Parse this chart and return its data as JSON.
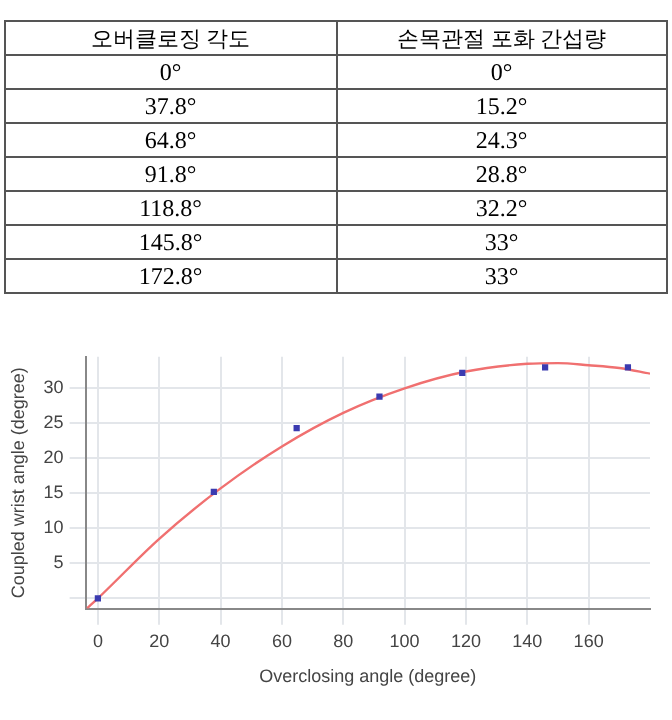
{
  "chart_data": [
    {
      "type": "other",
      "annotations": [
        "오버클로징 각도",
        "손목관절 포화 간섭량",
        "0°",
        "0°",
        "37.8°",
        "15.2°",
        "64.8°",
        "24.3°",
        "91.8°",
        "28.8°",
        "118.8°",
        "32.2°",
        "145.8°",
        "33°",
        "172.8°",
        "33°"
      ]
    },
    {
      "type": "scatter",
      "xlabel": "Overclosing angle (degree)",
      "ylabel": "Coupled wrist angle (degree)",
      "xlim": [
        -4,
        180
      ],
      "ylim": [
        -1.5,
        34.5
      ],
      "xticks": [
        0,
        20,
        40,
        60,
        80,
        100,
        120,
        140,
        160
      ],
      "yticks": [
        {
          "value": 0,
          "label": null
        },
        5,
        10,
        15,
        20,
        25,
        30
      ],
      "grid": true,
      "series": [
        {
          "color": "#3b3bb0",
          "marker": "square",
          "x": [
            0,
            37.8,
            64.8,
            91.8,
            118.8,
            145.8,
            172.8
          ],
          "values": [
            0,
            15.2,
            24.3,
            28.8,
            32.2,
            33,
            33
          ]
        },
        {
          "type": "line",
          "color": "#f07070",
          "marker": "none",
          "x": [
            -3.5,
            0,
            20,
            40,
            60,
            80,
            100,
            120,
            140,
            150,
            160,
            170,
            180
          ],
          "values": [
            -1.4,
            0,
            8.5,
            15.7,
            21.7,
            26.5,
            30.0,
            32.4,
            33.5,
            33.6,
            33.3,
            32.9,
            32.1
          ]
        }
      ]
    }
  ]
}
